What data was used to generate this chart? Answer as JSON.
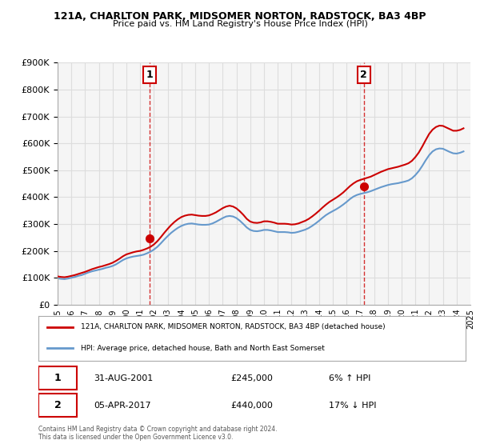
{
  "title": "121A, CHARLTON PARK, MIDSOMER NORTON, RADSTOCK, BA3 4BP",
  "subtitle": "Price paid vs. HM Land Registry's House Price Index (HPI)",
  "legend_line1": "121A, CHARLTON PARK, MIDSOMER NORTON, RADSTOCK, BA3 4BP (detached house)",
  "legend_line2": "HPI: Average price, detached house, Bath and North East Somerset",
  "sale1_label": "1",
  "sale1_date": "31-AUG-2001",
  "sale1_price": "£245,000",
  "sale1_hpi": "6% ↑ HPI",
  "sale2_label": "2",
  "sale2_date": "05-APR-2017",
  "sale2_price": "£440,000",
  "sale2_hpi": "17% ↓ HPI",
  "footer": "Contains HM Land Registry data © Crown copyright and database right 2024.\nThis data is licensed under the Open Government Licence v3.0.",
  "red_color": "#cc0000",
  "blue_color": "#6699cc",
  "marker_color": "#cc0000",
  "ylim": [
    0,
    900000
  ],
  "yticks": [
    0,
    100000,
    200000,
    300000,
    400000,
    500000,
    600000,
    700000,
    800000,
    900000
  ],
  "hpi_years": [
    1995.0,
    1995.25,
    1995.5,
    1995.75,
    1996.0,
    1996.25,
    1996.5,
    1996.75,
    1997.0,
    1997.25,
    1997.5,
    1997.75,
    1998.0,
    1998.25,
    1998.5,
    1998.75,
    1999.0,
    1999.25,
    1999.5,
    1999.75,
    2000.0,
    2000.25,
    2000.5,
    2000.75,
    2001.0,
    2001.25,
    2001.5,
    2001.75,
    2002.0,
    2002.25,
    2002.5,
    2002.75,
    2003.0,
    2003.25,
    2003.5,
    2003.75,
    2004.0,
    2004.25,
    2004.5,
    2004.75,
    2005.0,
    2005.25,
    2005.5,
    2005.75,
    2006.0,
    2006.25,
    2006.5,
    2006.75,
    2007.0,
    2007.25,
    2007.5,
    2007.75,
    2008.0,
    2008.25,
    2008.5,
    2008.75,
    2009.0,
    2009.25,
    2009.5,
    2009.75,
    2010.0,
    2010.25,
    2010.5,
    2010.75,
    2011.0,
    2011.25,
    2011.5,
    2011.75,
    2012.0,
    2012.25,
    2012.5,
    2012.75,
    2013.0,
    2013.25,
    2013.5,
    2013.75,
    2014.0,
    2014.25,
    2014.5,
    2014.75,
    2015.0,
    2015.25,
    2015.5,
    2015.75,
    2016.0,
    2016.25,
    2016.5,
    2016.75,
    2017.0,
    2017.25,
    2017.5,
    2017.75,
    2018.0,
    2018.25,
    2018.5,
    2018.75,
    2019.0,
    2019.25,
    2019.5,
    2019.75,
    2020.0,
    2020.25,
    2020.5,
    2020.75,
    2021.0,
    2021.25,
    2021.5,
    2021.75,
    2022.0,
    2022.25,
    2022.5,
    2022.75,
    2023.0,
    2023.25,
    2023.5,
    2023.75,
    2024.0,
    2024.25,
    2024.5
  ],
  "hpi_values": [
    98000,
    96000,
    95000,
    97000,
    100000,
    103000,
    107000,
    110000,
    115000,
    120000,
    124000,
    127000,
    130000,
    133000,
    137000,
    140000,
    144000,
    150000,
    158000,
    166000,
    172000,
    176000,
    179000,
    181000,
    183000,
    186000,
    191000,
    197000,
    205000,
    215000,
    228000,
    242000,
    255000,
    267000,
    277000,
    286000,
    293000,
    298000,
    301000,
    302000,
    300000,
    298000,
    297000,
    297000,
    298000,
    302000,
    308000,
    315000,
    322000,
    328000,
    330000,
    328000,
    322000,
    312000,
    300000,
    287000,
    278000,
    274000,
    273000,
    275000,
    278000,
    278000,
    276000,
    273000,
    270000,
    270000,
    270000,
    269000,
    267000,
    268000,
    271000,
    275000,
    279000,
    285000,
    293000,
    302000,
    312000,
    323000,
    333000,
    341000,
    348000,
    355000,
    363000,
    372000,
    382000,
    393000,
    402000,
    408000,
    412000,
    415000,
    418000,
    422000,
    427000,
    432000,
    437000,
    441000,
    445000,
    448000,
    450000,
    452000,
    455000,
    458000,
    462000,
    470000,
    482000,
    497000,
    516000,
    537000,
    556000,
    570000,
    578000,
    581000,
    580000,
    574000,
    568000,
    563000,
    562000,
    565000,
    570000
  ],
  "red_years": [
    1995.0,
    1995.25,
    1995.5,
    1995.75,
    1996.0,
    1996.25,
    1996.5,
    1996.75,
    1997.0,
    1997.25,
    1997.5,
    1997.75,
    1998.0,
    1998.25,
    1998.5,
    1998.75,
    1999.0,
    1999.25,
    1999.5,
    1999.75,
    2000.0,
    2000.25,
    2000.5,
    2000.75,
    2001.0,
    2001.25,
    2001.5,
    2001.75,
    2002.0,
    2002.25,
    2002.5,
    2002.75,
    2003.0,
    2003.25,
    2003.5,
    2003.75,
    2004.0,
    2004.25,
    2004.5,
    2004.75,
    2005.0,
    2005.25,
    2005.5,
    2005.75,
    2006.0,
    2006.25,
    2006.5,
    2006.75,
    2007.0,
    2007.25,
    2007.5,
    2007.75,
    2008.0,
    2008.25,
    2008.5,
    2008.75,
    2009.0,
    2009.25,
    2009.5,
    2009.75,
    2010.0,
    2010.25,
    2010.5,
    2010.75,
    2011.0,
    2011.25,
    2011.5,
    2011.75,
    2012.0,
    2012.25,
    2012.5,
    2012.75,
    2013.0,
    2013.25,
    2013.5,
    2013.75,
    2014.0,
    2014.25,
    2014.5,
    2014.75,
    2015.0,
    2015.25,
    2015.5,
    2015.75,
    2016.0,
    2016.25,
    2016.5,
    2016.75,
    2017.0,
    2017.25,
    2017.5,
    2017.75,
    2018.0,
    2018.25,
    2018.5,
    2018.75,
    2019.0,
    2019.25,
    2019.5,
    2019.75,
    2020.0,
    2020.25,
    2020.5,
    2020.75,
    2021.0,
    2021.25,
    2021.5,
    2021.75,
    2022.0,
    2022.25,
    2022.5,
    2022.75,
    2023.0,
    2023.25,
    2023.5,
    2023.75,
    2024.0,
    2024.25,
    2024.5
  ],
  "red_values": [
    105000,
    103000,
    102000,
    104000,
    107000,
    110000,
    114000,
    118000,
    122000,
    127000,
    132000,
    136000,
    140000,
    143000,
    147000,
    151000,
    156000,
    163000,
    171000,
    180000,
    187000,
    191000,
    195000,
    198000,
    200000,
    204000,
    209000,
    215000,
    224000,
    236000,
    251000,
    267000,
    282000,
    296000,
    308000,
    318000,
    326000,
    331000,
    334000,
    335000,
    333000,
    331000,
    330000,
    330000,
    332000,
    337000,
    343000,
    351000,
    359000,
    365000,
    368000,
    365000,
    358000,
    347000,
    334000,
    319000,
    309000,
    305000,
    304000,
    306000,
    310000,
    310000,
    308000,
    305000,
    301000,
    301000,
    301000,
    300000,
    298000,
    299000,
    302000,
    307000,
    312000,
    319000,
    328000,
    338000,
    349000,
    361000,
    372000,
    382000,
    390000,
    398000,
    407000,
    417000,
    429000,
    441000,
    451000,
    459000,
    464000,
    468000,
    472000,
    476000,
    482000,
    488000,
    494000,
    499000,
    504000,
    507000,
    510000,
    513000,
    517000,
    521000,
    526000,
    535000,
    549000,
    566000,
    588000,
    612000,
    635000,
    651000,
    661000,
    666000,
    665000,
    659000,
    653000,
    647000,
    647000,
    650000,
    656000
  ],
  "sale1_year": 2001.667,
  "sale1_value": 245000,
  "sale2_year": 2017.25,
  "sale2_value": 440000,
  "xlim_left": 1995.0,
  "xlim_right": 2025.0,
  "xticks": [
    1995,
    1996,
    1997,
    1998,
    1999,
    2000,
    2001,
    2002,
    2003,
    2004,
    2005,
    2006,
    2007,
    2008,
    2009,
    2010,
    2011,
    2012,
    2013,
    2014,
    2015,
    2016,
    2017,
    2018,
    2019,
    2020,
    2021,
    2022,
    2023,
    2024,
    2025
  ],
  "grid_color": "#dddddd",
  "background_color": "#ffffff",
  "plot_bg_color": "#f5f5f5"
}
